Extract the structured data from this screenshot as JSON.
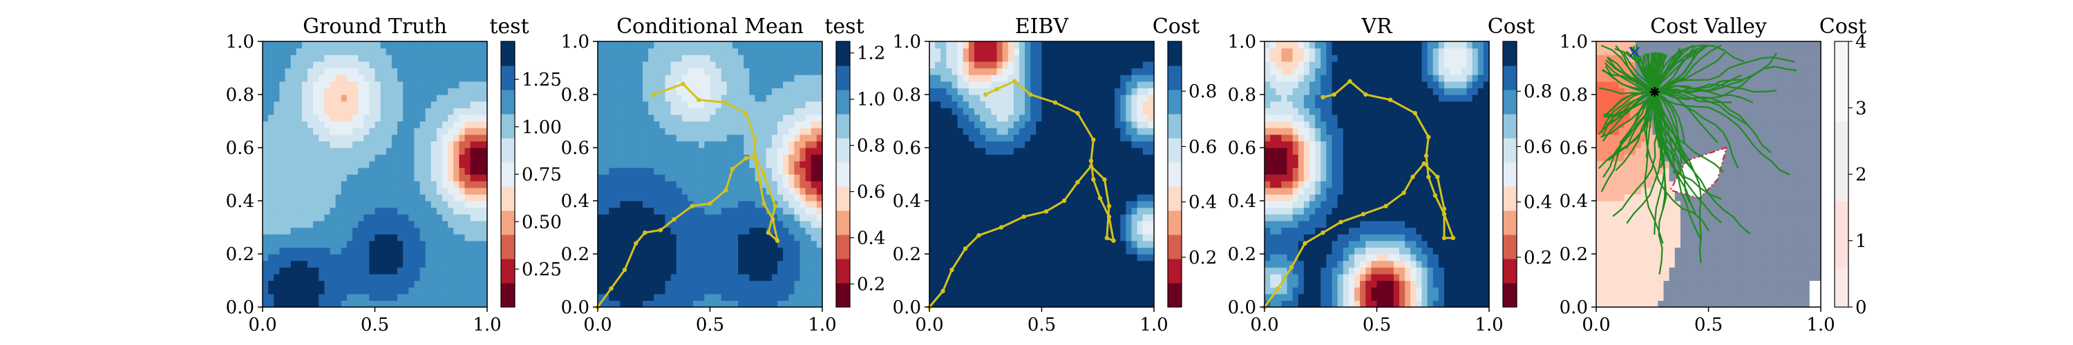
{
  "figure": {
    "background": "#ffffff"
  },
  "chart_data": [
    {
      "type": "heatmap",
      "title": "Ground Truth",
      "colorbar_label": "test",
      "xlim": [
        0,
        1
      ],
      "ylim": [
        0,
        1
      ],
      "x_ticks": [
        "0.0",
        "0.5",
        "1.0"
      ],
      "y_ticks": [
        "0.0",
        "0.2",
        "0.4",
        "0.6",
        "0.8",
        "1.0"
      ],
      "colorbar_range": [
        0.05,
        1.45
      ],
      "colorbar_ticks": [
        {
          "value": 0.25,
          "label": "0.25"
        },
        {
          "value": 0.5,
          "label": "0.50"
        },
        {
          "value": 0.75,
          "label": "0.75"
        },
        {
          "value": 1.0,
          "label": "1.00"
        },
        {
          "value": 1.25,
          "label": "1.25"
        }
      ],
      "colormap": "RdBu",
      "blobs": [
        {
          "x": 0.97,
          "y": 0.55,
          "value": 0.05,
          "radius": 0.16
        },
        {
          "x": 0.35,
          "y": 0.78,
          "value": 0.55,
          "radius": 0.16
        },
        {
          "x": 0.15,
          "y": 0.08,
          "value": 1.45,
          "radius": 0.18
        },
        {
          "x": 0.55,
          "y": 0.2,
          "value": 1.4,
          "radius": 0.16
        },
        {
          "x": 0.1,
          "y": 0.45,
          "value": 0.95,
          "radius": 0.2
        }
      ],
      "base_value": 1.1
    },
    {
      "type": "heatmap",
      "title": "Conditional Mean",
      "colorbar_label": "test",
      "xlim": [
        0,
        1
      ],
      "ylim": [
        0,
        1
      ],
      "x_ticks": [
        "0.0",
        "0.5",
        "1.0"
      ],
      "y_ticks": [
        "0.0",
        "0.2",
        "0.4",
        "0.6",
        "0.8",
        "1.0"
      ],
      "colorbar_range": [
        0.1,
        1.25
      ],
      "colorbar_ticks": [
        {
          "value": 0.2,
          "label": "0.2"
        },
        {
          "value": 0.4,
          "label": "0.4"
        },
        {
          "value": 0.6,
          "label": "0.6"
        },
        {
          "value": 0.8,
          "label": "0.8"
        },
        {
          "value": 1.0,
          "label": "1.0"
        },
        {
          "value": 1.2,
          "label": "1.2"
        }
      ],
      "colormap": "RdBu",
      "blobs": [
        {
          "x": 1.0,
          "y": 0.52,
          "value": 0.1,
          "radius": 0.18
        },
        {
          "x": 0.43,
          "y": 0.82,
          "value": 0.65,
          "radius": 0.14
        },
        {
          "x": 0.15,
          "y": 0.2,
          "value": 1.25,
          "radius": 0.3
        },
        {
          "x": 0.72,
          "y": 0.2,
          "value": 1.2,
          "radius": 0.2
        }
      ],
      "base_value": 0.95,
      "path": [
        [
          0.0,
          0.0
        ],
        [
          0.06,
          0.07
        ],
        [
          0.12,
          0.14
        ],
        [
          0.17,
          0.24
        ],
        [
          0.21,
          0.28
        ],
        [
          0.28,
          0.29
        ],
        [
          0.34,
          0.33
        ],
        [
          0.42,
          0.38
        ],
        [
          0.5,
          0.39
        ],
        [
          0.57,
          0.44
        ],
        [
          0.6,
          0.52
        ],
        [
          0.66,
          0.56
        ],
        [
          0.7,
          0.57
        ],
        [
          0.74,
          0.5
        ],
        [
          0.79,
          0.38
        ],
        [
          0.76,
          0.28
        ],
        [
          0.8,
          0.25
        ],
        [
          0.78,
          0.33
        ],
        [
          0.74,
          0.39
        ],
        [
          0.72,
          0.48
        ],
        [
          0.7,
          0.56
        ],
        [
          0.7,
          0.63
        ],
        [
          0.66,
          0.73
        ],
        [
          0.57,
          0.77
        ],
        [
          0.45,
          0.78
        ],
        [
          0.38,
          0.84
        ],
        [
          0.25,
          0.8
        ]
      ],
      "path_color": "#d4c21b"
    },
    {
      "type": "heatmap",
      "title": "EIBV",
      "colorbar_label": "Cost",
      "xlim": [
        0,
        1
      ],
      "ylim": [
        0,
        1
      ],
      "x_ticks": [
        "0.0",
        "0.5",
        "1.0"
      ],
      "y_ticks": [
        "0.0",
        "0.2",
        "0.4",
        "0.6",
        "0.8",
        "1.0"
      ],
      "colorbar_range": [
        0.02,
        0.98
      ],
      "colorbar_ticks": [
        {
          "value": 0.2,
          "label": "0.2"
        },
        {
          "value": 0.4,
          "label": "0.4"
        },
        {
          "value": 0.6,
          "label": "0.6"
        },
        {
          "value": 0.8,
          "label": "0.8"
        }
      ],
      "colormap": "RdBu",
      "blobs": [
        {
          "x": 0.25,
          "y": 0.95,
          "value": 0.05,
          "radius": 0.16
        },
        {
          "x": 0.32,
          "y": 0.75,
          "value": 0.6,
          "radius": 0.14
        },
        {
          "x": 0.98,
          "y": 0.75,
          "value": 0.4,
          "radius": 0.12
        },
        {
          "x": 0.98,
          "y": 0.3,
          "value": 0.5,
          "radius": 0.1
        },
        {
          "x": 0.0,
          "y": 0.95,
          "value": 0.6,
          "radius": 0.12
        }
      ],
      "base_value": 0.98,
      "path": [
        [
          0.0,
          0.0
        ],
        [
          0.06,
          0.06
        ],
        [
          0.1,
          0.14
        ],
        [
          0.16,
          0.22
        ],
        [
          0.22,
          0.27
        ],
        [
          0.32,
          0.3
        ],
        [
          0.42,
          0.34
        ],
        [
          0.52,
          0.36
        ],
        [
          0.6,
          0.4
        ],
        [
          0.66,
          0.47
        ],
        [
          0.72,
          0.53
        ],
        [
          0.78,
          0.48
        ],
        [
          0.8,
          0.38
        ],
        [
          0.79,
          0.26
        ],
        [
          0.82,
          0.25
        ],
        [
          0.8,
          0.34
        ],
        [
          0.76,
          0.41
        ],
        [
          0.73,
          0.48
        ],
        [
          0.72,
          0.55
        ],
        [
          0.73,
          0.63
        ],
        [
          0.66,
          0.73
        ],
        [
          0.56,
          0.77
        ],
        [
          0.45,
          0.8
        ],
        [
          0.38,
          0.85
        ],
        [
          0.3,
          0.82
        ],
        [
          0.25,
          0.8
        ]
      ],
      "path_color": "#d4c21b"
    },
    {
      "type": "heatmap",
      "title": "VR",
      "colorbar_label": "Cost",
      "xlim": [
        0,
        1
      ],
      "ylim": [
        0,
        1
      ],
      "x_ticks": [
        "0.0",
        "0.5",
        "1.0"
      ],
      "y_ticks": [
        "0.0",
        "0.2",
        "0.4",
        "0.6",
        "0.8",
        "1.0"
      ],
      "colorbar_range": [
        0.02,
        0.98
      ],
      "colorbar_ticks": [
        {
          "value": 0.2,
          "label": "0.2"
        },
        {
          "value": 0.4,
          "label": "0.4"
        },
        {
          "value": 0.6,
          "label": "0.6"
        },
        {
          "value": 0.8,
          "label": "0.8"
        }
      ],
      "colormap": "RdBu",
      "blobs": [
        {
          "x": 0.05,
          "y": 0.55,
          "value": 0.02,
          "radius": 0.2
        },
        {
          "x": 0.53,
          "y": 0.05,
          "value": 0.02,
          "radius": 0.18
        },
        {
          "x": 0.1,
          "y": 0.95,
          "value": 0.35,
          "radius": 0.15
        },
        {
          "x": 0.85,
          "y": 0.93,
          "value": 0.45,
          "radius": 0.12
        },
        {
          "x": 0.05,
          "y": 0.1,
          "value": 0.6,
          "radius": 0.1
        }
      ],
      "base_value": 0.98,
      "path": [
        [
          0.0,
          0.0
        ],
        [
          0.06,
          0.07
        ],
        [
          0.12,
          0.15
        ],
        [
          0.18,
          0.24
        ],
        [
          0.26,
          0.28
        ],
        [
          0.34,
          0.32
        ],
        [
          0.44,
          0.35
        ],
        [
          0.54,
          0.38
        ],
        [
          0.62,
          0.43
        ],
        [
          0.66,
          0.49
        ],
        [
          0.71,
          0.54
        ],
        [
          0.77,
          0.49
        ],
        [
          0.8,
          0.37
        ],
        [
          0.8,
          0.26
        ],
        [
          0.84,
          0.26
        ],
        [
          0.8,
          0.35
        ],
        [
          0.76,
          0.42
        ],
        [
          0.73,
          0.49
        ],
        [
          0.72,
          0.57
        ],
        [
          0.73,
          0.64
        ],
        [
          0.67,
          0.73
        ],
        [
          0.56,
          0.78
        ],
        [
          0.45,
          0.8
        ],
        [
          0.38,
          0.85
        ],
        [
          0.31,
          0.8
        ],
        [
          0.26,
          0.79
        ]
      ],
      "path_color": "#d4c21b"
    },
    {
      "type": "heatmap",
      "title": "Cost Valley",
      "colorbar_label": "Cost",
      "xlim": [
        0,
        1
      ],
      "ylim": [
        0,
        1
      ],
      "x_ticks": [
        "0.0",
        "0.5",
        "1.0"
      ],
      "y_ticks": [
        "0.0",
        "0.2",
        "0.4",
        "0.6",
        "0.8",
        "1.0"
      ],
      "colorbar_range": [
        0,
        4
      ],
      "colorbar_ticks": [
        {
          "value": 0,
          "label": "0"
        },
        {
          "value": 1,
          "label": "1"
        },
        {
          "value": 2,
          "label": "2"
        },
        {
          "value": 3,
          "label": "3"
        },
        {
          "value": 4,
          "label": "4"
        }
      ],
      "colormap": "Reds",
      "tree_color": "#1f8a1f",
      "obstacle_polygon": [
        [
          0.4,
          0.55
        ],
        [
          0.58,
          0.6
        ],
        [
          0.54,
          0.48
        ],
        [
          0.46,
          0.41
        ],
        [
          0.33,
          0.44
        ]
      ],
      "start": [
        0.26,
        0.81
      ],
      "goal": [
        0.17,
        0.96
      ]
    }
  ]
}
